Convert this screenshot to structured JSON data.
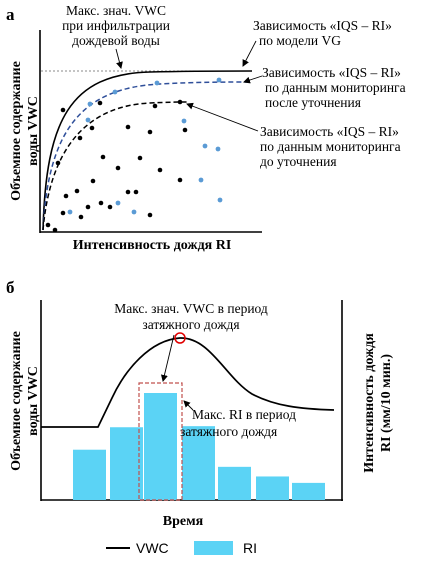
{
  "panel_a": {
    "letter": "а",
    "y_label_line1": "Объемное содержание",
    "y_label_line2": "воды VWC",
    "x_label": "Интенсивность дождя RI",
    "max_note": [
      "Макс. знач. VWC",
      "при инфильтрации",
      "дождевой воды"
    ],
    "vg_label": [
      "Зависимость «IQS – RI»",
      "по модели VG"
    ],
    "after_label": [
      "Зависимость «IQS – RI»",
      "по данным мониторинга",
      "после уточнения"
    ],
    "before_label": [
      "Зависимость «IQS – RI»",
      "по данным мониторинга",
      "до уточнения"
    ],
    "colors": {
      "black_points": "#000000",
      "blue_points": "#5b9bd5",
      "after_curve": "#2f4f9a"
    }
  },
  "panel_b": {
    "letter": "б",
    "y_left_line1": "Объемное содержание",
    "y_left_line2": "воды VWC",
    "y_right_line1": "Интенсивность дождя",
    "y_right_line2": "RI (мм/10 мин.)",
    "x_label": "Время",
    "max_vwc_note": [
      "Макс. знач. VWC  в период",
      "затяжного дождя"
    ],
    "max_ri_note": [
      "Макс. RI в период",
      "затяжного дождя"
    ],
    "ri_fraction": [
      0.47,
      0.68,
      1.0,
      0.69,
      0.31,
      0.22,
      0.16
    ],
    "colors": {
      "bar": "#5bd3f5",
      "marker": "#e00000",
      "box": "#c0504d"
    }
  },
  "legend": {
    "vwc": "VWC",
    "ri": "RI"
  }
}
